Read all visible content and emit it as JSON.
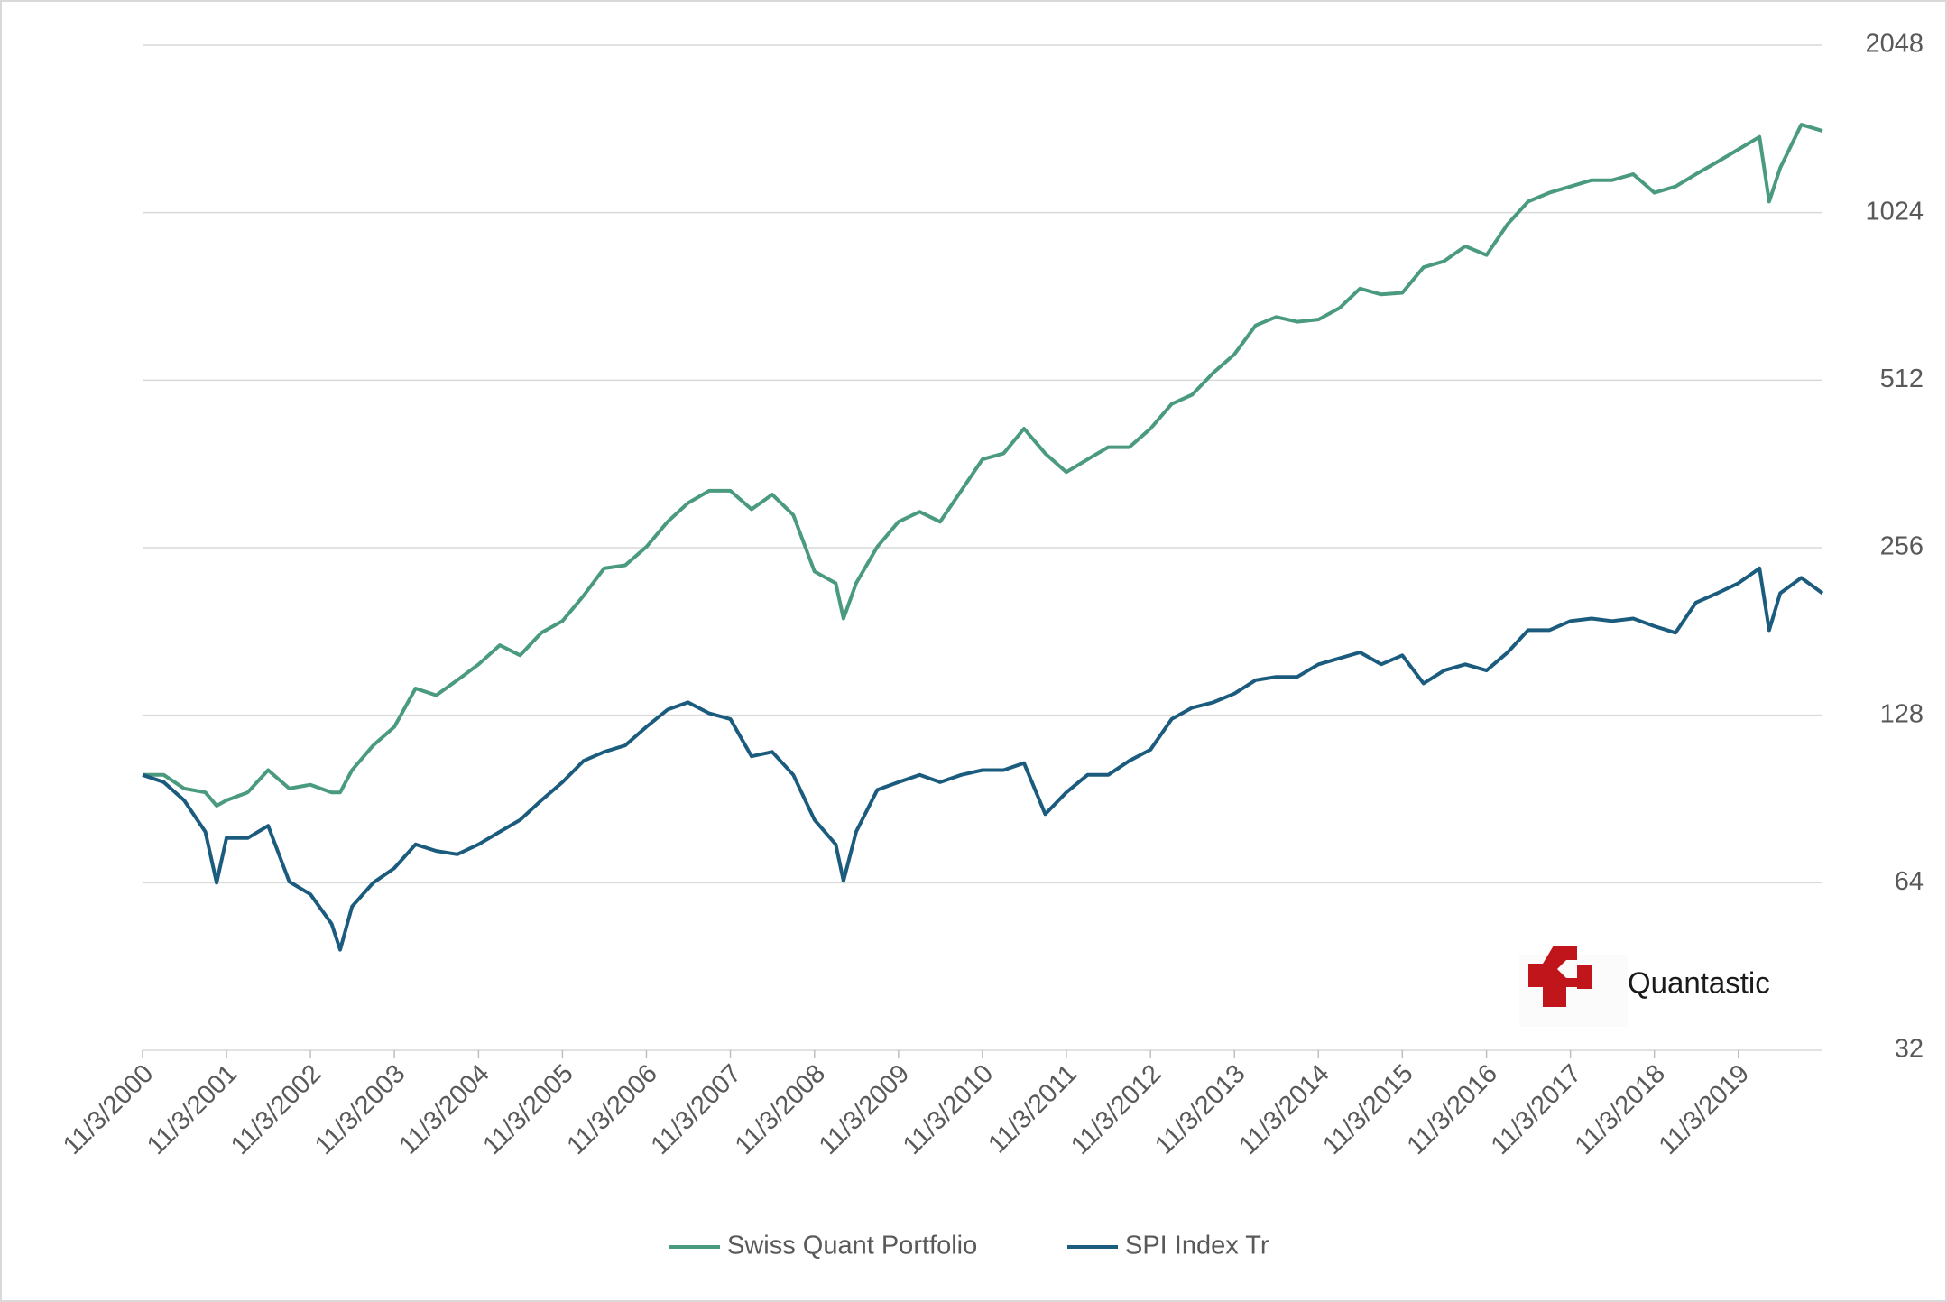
{
  "chart_data": {
    "type": "line",
    "yscale": "log",
    "grid": true,
    "legend": "bottom",
    "watermark": "Quantastic",
    "xlim": [
      "2000-11-03",
      "2020-11-03"
    ],
    "xticks": [
      {
        "value": "2000-11-03",
        "label": "11/3/2000"
      },
      {
        "value": "2001-11-03",
        "label": "11/3/2001"
      },
      {
        "value": "2002-11-03",
        "label": "11/3/2002"
      },
      {
        "value": "2003-11-03",
        "label": "11/3/2003"
      },
      {
        "value": "2004-11-03",
        "label": "11/3/2004"
      },
      {
        "value": "2005-11-03",
        "label": "11/3/2005"
      },
      {
        "value": "2006-11-03",
        "label": "11/3/2006"
      },
      {
        "value": "2007-11-03",
        "label": "11/3/2007"
      },
      {
        "value": "2008-11-03",
        "label": "11/3/2008"
      },
      {
        "value": "2009-11-03",
        "label": "11/3/2009"
      },
      {
        "value": "2010-11-03",
        "label": "11/3/2010"
      },
      {
        "value": "2011-11-03",
        "label": "11/3/2011"
      },
      {
        "value": "2012-11-03",
        "label": "11/3/2012"
      },
      {
        "value": "2013-11-03",
        "label": "11/3/2013"
      },
      {
        "value": "2014-11-03",
        "label": "11/3/2014"
      },
      {
        "value": "2015-11-03",
        "label": "11/3/2015"
      },
      {
        "value": "2016-11-03",
        "label": "11/3/2016"
      },
      {
        "value": "2017-11-03",
        "label": "11/3/2017"
      },
      {
        "value": "2018-11-03",
        "label": "11/3/2018"
      },
      {
        "value": "2019-11-03",
        "label": "11/3/2019"
      }
    ],
    "ylim": [
      32,
      2048
    ],
    "yticks": [
      32,
      64,
      128,
      256,
      512,
      1024,
      2048
    ],
    "x": [
      "2000-11-03",
      "2001-02-03",
      "2001-05-03",
      "2001-08-03",
      "2001-09-21",
      "2001-11-03",
      "2002-02-03",
      "2002-05-03",
      "2002-08-03",
      "2002-11-03",
      "2003-02-03",
      "2003-03-12",
      "2003-05-03",
      "2003-08-03",
      "2003-11-03",
      "2004-02-03",
      "2004-05-03",
      "2004-08-03",
      "2004-11-03",
      "2005-02-03",
      "2005-05-03",
      "2005-08-03",
      "2005-11-03",
      "2006-02-03",
      "2006-05-03",
      "2006-08-03",
      "2006-11-03",
      "2007-02-03",
      "2007-05-03",
      "2007-08-03",
      "2007-11-03",
      "2008-02-03",
      "2008-05-03",
      "2008-08-03",
      "2008-11-03",
      "2009-02-03",
      "2009-03-09",
      "2009-05-03",
      "2009-08-03",
      "2009-11-03",
      "2010-02-03",
      "2010-05-03",
      "2010-08-03",
      "2010-11-03",
      "2011-02-03",
      "2011-05-03",
      "2011-08-03",
      "2011-11-03",
      "2012-02-03",
      "2012-05-03",
      "2012-08-03",
      "2012-11-03",
      "2013-02-03",
      "2013-05-03",
      "2013-08-03",
      "2013-11-03",
      "2014-02-03",
      "2014-05-03",
      "2014-08-03",
      "2014-11-03",
      "2015-02-03",
      "2015-05-03",
      "2015-08-03",
      "2015-11-03",
      "2016-02-03",
      "2016-05-03",
      "2016-08-03",
      "2016-11-03",
      "2017-02-03",
      "2017-05-03",
      "2017-08-03",
      "2017-11-03",
      "2018-02-03",
      "2018-05-03",
      "2018-08-03",
      "2018-11-03",
      "2019-02-03",
      "2019-05-03",
      "2019-08-03",
      "2019-11-03",
      "2020-02-03",
      "2020-03-16",
      "2020-05-03",
      "2020-08-03",
      "2020-11-03"
    ],
    "series": [
      {
        "name": "Swiss Quant Portfolio",
        "color": "#4a9a80",
        "values": [
          100,
          100,
          94.5,
          93,
          88,
          90,
          93,
          102,
          94.5,
          96,
          93,
          93,
          102,
          113,
          122,
          143,
          139,
          148,
          158,
          171,
          164,
          180,
          189,
          210,
          235,
          238,
          257,
          285,
          308,
          324,
          324,
          300,
          319,
          293,
          232,
          221,
          191,
          221,
          257,
          285,
          297,
          285,
          324,
          369,
          378,
          419,
          378,
          350,
          369,
          388,
          388,
          419,
          464,
          482,
          528,
          570,
          642,
          665,
          652,
          658,
          690,
          748,
          730,
          735,
          817,
          838,
          891,
          859,
          977,
          1072,
          1112,
          1141,
          1171,
          1171,
          1201,
          1112,
          1141,
          1201,
          1263,
          1330,
          1401,
          1072,
          1232,
          1474,
          1436
        ]
      },
      {
        "name": "SPI Index Tr",
        "color": "#1b5c7e",
        "values": [
          100,
          97,
          90,
          79,
          64,
          77,
          77,
          81,
          64.3,
          61,
          54,
          48.5,
          58,
          64,
          68,
          75,
          73,
          72,
          75,
          79,
          83,
          90,
          97,
          106,
          110,
          113,
          122,
          131,
          135,
          129,
          126,
          108,
          110,
          100,
          83,
          75,
          64.5,
          79,
          94,
          97,
          100,
          97,
          100,
          102,
          102,
          105,
          85,
          93,
          100,
          100,
          106,
          111,
          126,
          132,
          135,
          140,
          148,
          150,
          150,
          158,
          162,
          166,
          158,
          164,
          146,
          154,
          158,
          154,
          166,
          182,
          182,
          189,
          191,
          189,
          191,
          185,
          180,
          204,
          212,
          221,
          235,
          182,
          212,
          226,
          212
        ]
      }
    ]
  }
}
